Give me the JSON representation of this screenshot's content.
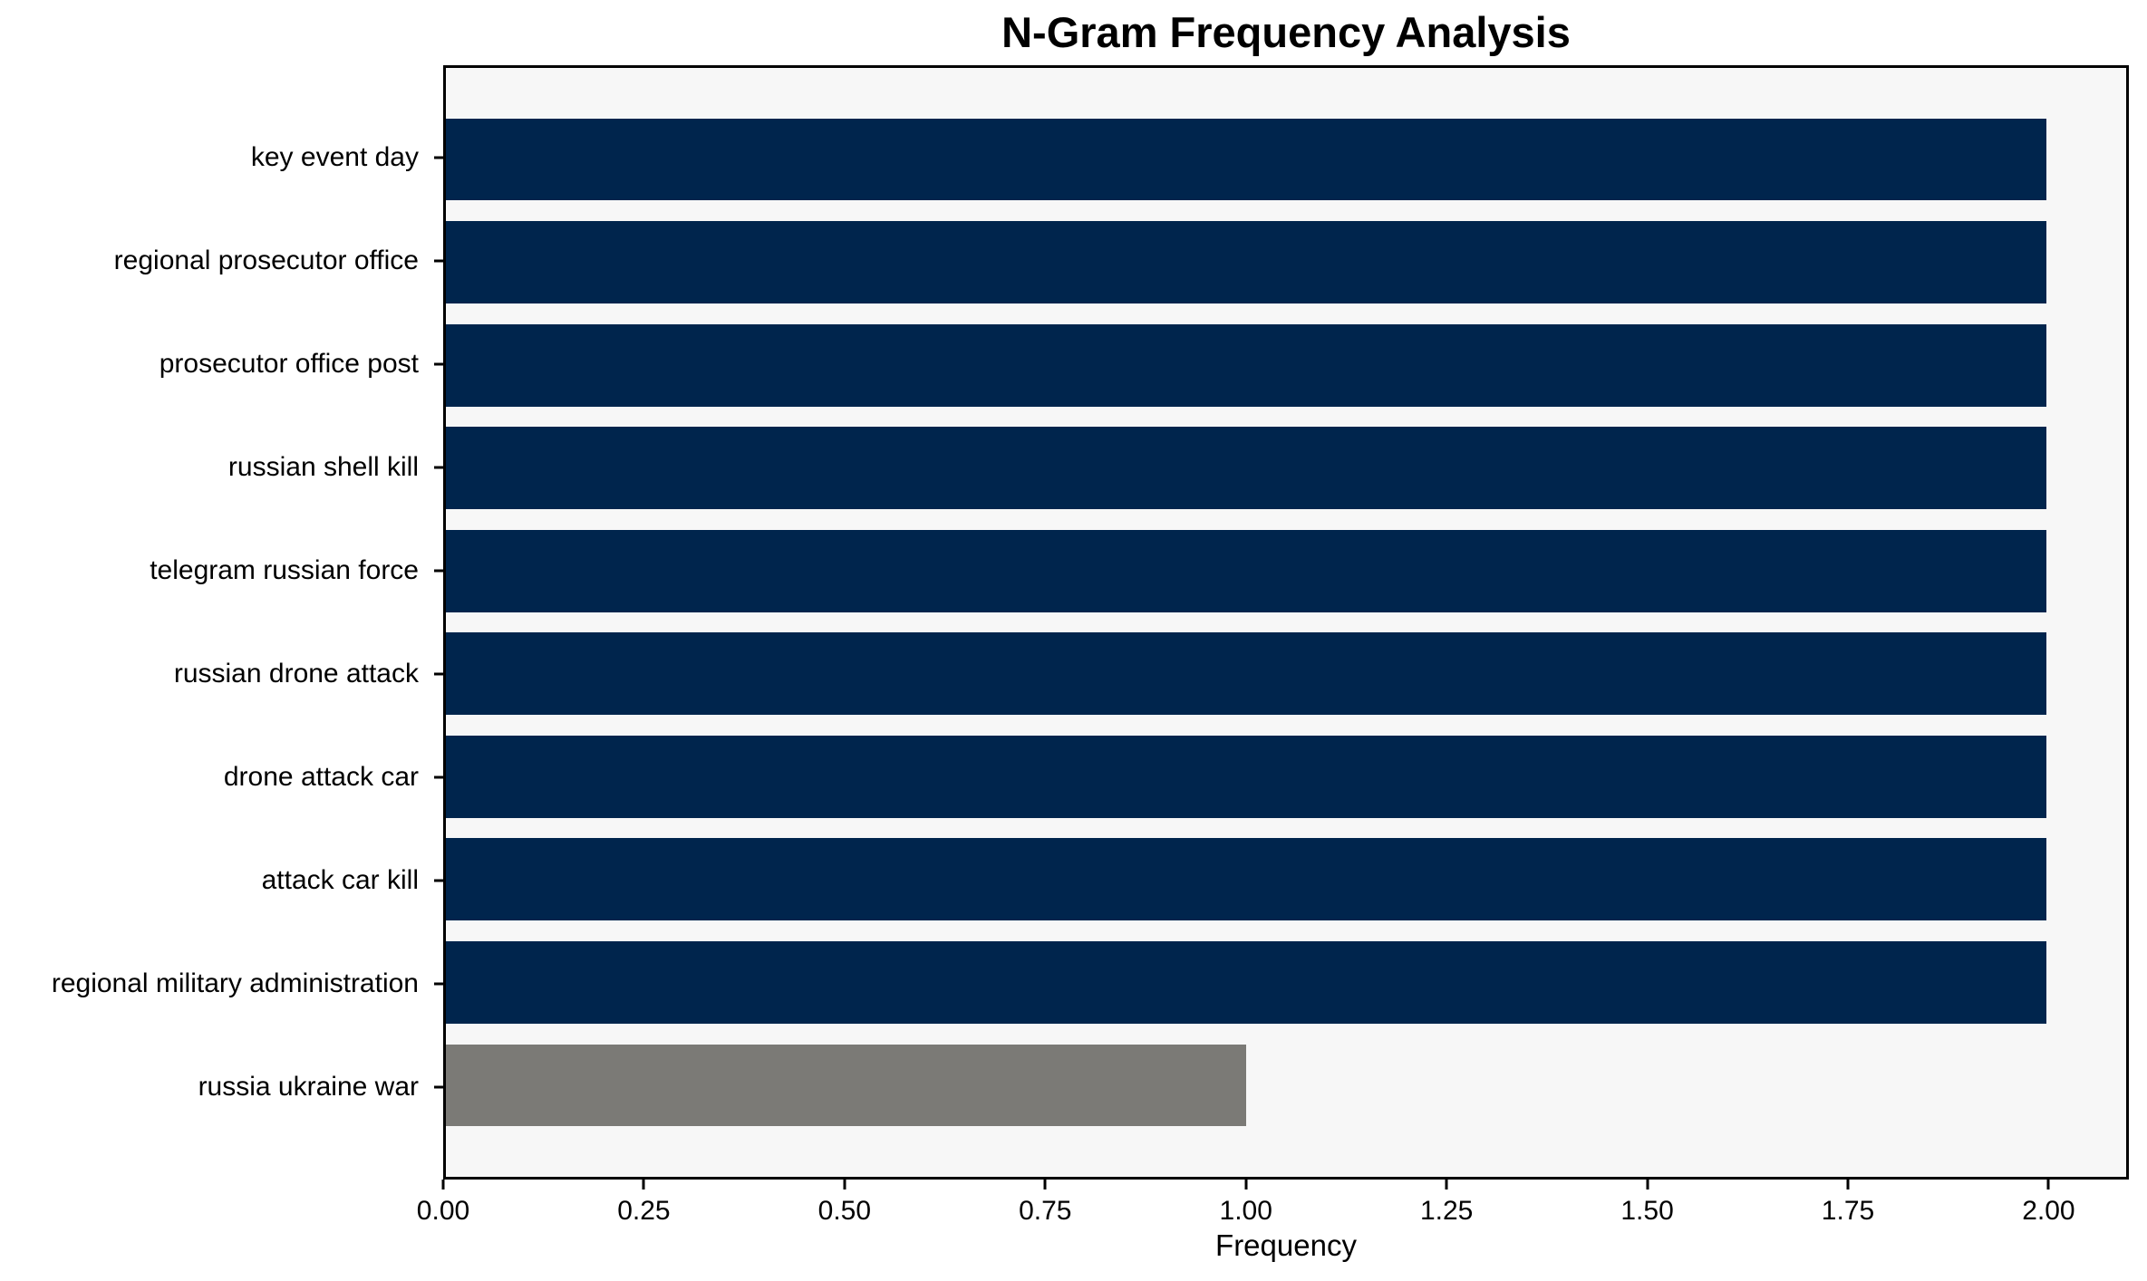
{
  "chart_data": {
    "type": "bar",
    "orientation": "horizontal",
    "title": "N-Gram Frequency Analysis",
    "xlabel": "Frequency",
    "categories": [
      "key event day",
      "regional prosecutor office",
      "prosecutor office post",
      "russian shell kill",
      "telegram russian force",
      "russian drone attack",
      "drone attack car",
      "attack car kill",
      "regional military administration",
      "russia ukraine war"
    ],
    "values": [
      2,
      2,
      2,
      2,
      2,
      2,
      2,
      2,
      2,
      1
    ],
    "bar_colors": [
      "#00254d",
      "#00254d",
      "#00254d",
      "#00254d",
      "#00254d",
      "#00254d",
      "#00254d",
      "#00254d",
      "#00254d",
      "#7b7a76"
    ],
    "xlim": [
      0,
      2.1
    ],
    "xticks": [
      {
        "value": 0.0,
        "label": "0.00"
      },
      {
        "value": 0.25,
        "label": "0.25"
      },
      {
        "value": 0.5,
        "label": "0.50"
      },
      {
        "value": 0.75,
        "label": "0.75"
      },
      {
        "value": 1.0,
        "label": "1.00"
      },
      {
        "value": 1.25,
        "label": "1.25"
      },
      {
        "value": 1.5,
        "label": "1.50"
      },
      {
        "value": 1.75,
        "label": "1.75"
      },
      {
        "value": 2.0,
        "label": "2.00"
      }
    ],
    "bar_height_fraction": 0.8,
    "grid": false,
    "legend": false,
    "plot_background": "#f7f7f7",
    "figure_background": "#ffffff",
    "spine_color": "#000000",
    "text_color": "#000000"
  }
}
